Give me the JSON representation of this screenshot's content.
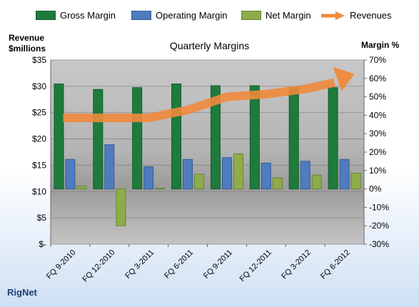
{
  "chart_data": {
    "type": "bar",
    "title": "Quarterly Margins",
    "brand": "RigNet",
    "categories": [
      "FQ 9-2010",
      "FQ 12-2010",
      "FQ 3-2011",
      "FQ 6-2011",
      "FQ 9-2011",
      "FQ 12-2011",
      "FQ 3-2012",
      "FQ 6-2012"
    ],
    "left_axis": {
      "label_line1": "Revenue",
      "label_line2": "$millions",
      "range": [
        0,
        35
      ],
      "ticks": [
        {
          "value": 0,
          "label": "$-"
        },
        {
          "value": 5,
          "label": "$5"
        },
        {
          "value": 10,
          "label": "$10"
        },
        {
          "value": 15,
          "label": "$15"
        },
        {
          "value": 20,
          "label": "$20"
        },
        {
          "value": 25,
          "label": "$25"
        },
        {
          "value": 30,
          "label": "$30"
        },
        {
          "value": 35,
          "label": "$35"
        }
      ]
    },
    "right_axis": {
      "label": "Margin %",
      "range": [
        -30,
        70
      ],
      "ticks": [
        {
          "value": -30,
          "label": "-30%"
        },
        {
          "value": -20,
          "label": "-20%"
        },
        {
          "value": -10,
          "label": "-10%"
        },
        {
          "value": 0,
          "label": "0%"
        },
        {
          "value": 10,
          "label": "10%"
        },
        {
          "value": 20,
          "label": "20%"
        },
        {
          "value": 30,
          "label": "30%"
        },
        {
          "value": 40,
          "label": "40%"
        },
        {
          "value": 50,
          "label": "50%"
        },
        {
          "value": 60,
          "label": "60%"
        },
        {
          "value": 70,
          "label": "70%"
        }
      ]
    },
    "series": [
      {
        "name": "Gross Margin",
        "axis": "right",
        "kind": "bar",
        "color": "#1e7b3c",
        "values": [
          57,
          54,
          55,
          57,
          56,
          56,
          55,
          55
        ]
      },
      {
        "name": "Operating Margin",
        "axis": "right",
        "kind": "bar",
        "color": "#4f7cbf",
        "values": [
          16,
          24,
          12,
          16,
          17,
          14,
          15,
          16
        ]
      },
      {
        "name": "Net Margin",
        "axis": "right",
        "kind": "bar",
        "color": "#8fac4a",
        "values": [
          1.5,
          -20,
          0.4,
          8,
          19,
          6,
          7.5,
          8.5
        ]
      },
      {
        "name": "Revenues",
        "axis": "left",
        "kind": "line",
        "color": "#f08a3c",
        "values": [
          24,
          24,
          24,
          25.5,
          28,
          28.5,
          29.5,
          31.5
        ]
      }
    ],
    "grid": true,
    "legend_position": "top"
  }
}
